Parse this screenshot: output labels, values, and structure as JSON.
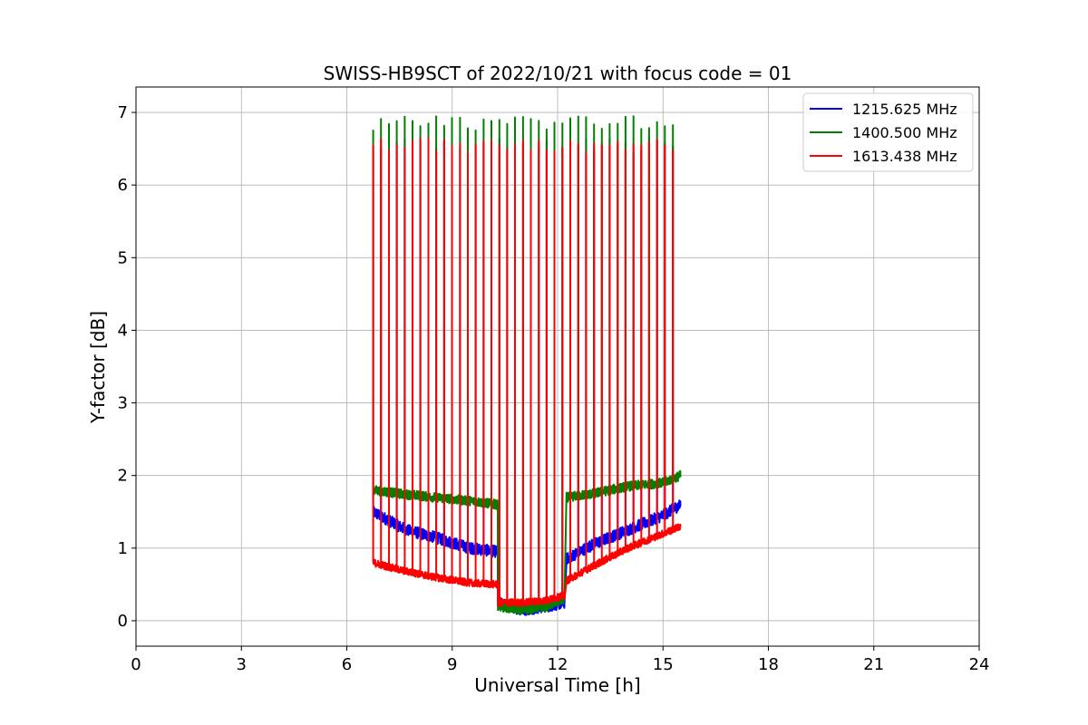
{
  "chart_data": {
    "type": "line",
    "title": "SWISS-HB9SCT of 2022/10/21 with focus code = 01",
    "xlabel": "Universal Time [h]",
    "ylabel": "Y-factor [dB]",
    "xlim": [
      0,
      24
    ],
    "ylim": [
      -0.35,
      7.35
    ],
    "xticks": [
      0,
      3,
      6,
      9,
      12,
      15,
      18,
      21,
      24
    ],
    "yticks": [
      0,
      1,
      2,
      3,
      4,
      5,
      6,
      7
    ],
    "grid": true,
    "legend_position": "top-right",
    "calibration_spikes": {
      "start_h": 6.75,
      "end_h": 15.28,
      "count": 39,
      "peaks_dB": {
        "1215.625 MHz": 6.55,
        "1400.500 MHz": 6.85,
        "1613.438 MHz": 6.55
      }
    },
    "series": [
      {
        "name": "1215.625 MHz",
        "color": "#0000ff",
        "segments": [
          {
            "x": [
              6.75,
              7.5,
              7.7,
              8.5,
              9.5,
              10.3
            ],
            "y": [
              1.5,
              1.3,
              1.25,
              1.15,
              1.0,
              0.95
            ]
          },
          {
            "x": [
              10.3,
              11.0,
              11.7,
              12.2
            ],
            "y": [
              0.25,
              0.15,
              0.2,
              0.25
            ]
          },
          {
            "x": [
              12.25,
              13.0,
              14.0,
              15.0,
              15.5
            ],
            "y": [
              0.85,
              1.05,
              1.25,
              1.45,
              1.6
            ]
          }
        ]
      },
      {
        "name": "1400.500 MHz",
        "color": "#008000",
        "segments": [
          {
            "x": [
              6.75,
              7.5,
              8.5,
              9.5,
              10.3
            ],
            "y": [
              1.8,
              1.75,
              1.7,
              1.65,
              1.6
            ]
          },
          {
            "x": [
              10.3,
              11.0,
              11.7,
              12.2
            ],
            "y": [
              0.2,
              0.15,
              0.2,
              0.3
            ]
          },
          {
            "x": [
              12.25,
              13.0,
              14.0,
              15.0,
              15.5
            ],
            "y": [
              1.7,
              1.75,
              1.85,
              1.9,
              2.0
            ]
          }
        ]
      },
      {
        "name": "1613.438 MHz",
        "color": "#ff0000",
        "segments": [
          {
            "x": [
              6.75,
              7.5,
              8.5,
              9.5,
              10.3
            ],
            "y": [
              0.8,
              0.7,
              0.6,
              0.52,
              0.5
            ]
          },
          {
            "x": [
              10.3,
              11.0,
              11.7,
              12.2
            ],
            "y": [
              0.25,
              0.25,
              0.28,
              0.35
            ]
          },
          {
            "x": [
              12.25,
              13.0,
              14.0,
              15.0,
              15.5
            ],
            "y": [
              0.55,
              0.75,
              1.0,
              1.2,
              1.3
            ]
          }
        ]
      }
    ]
  }
}
